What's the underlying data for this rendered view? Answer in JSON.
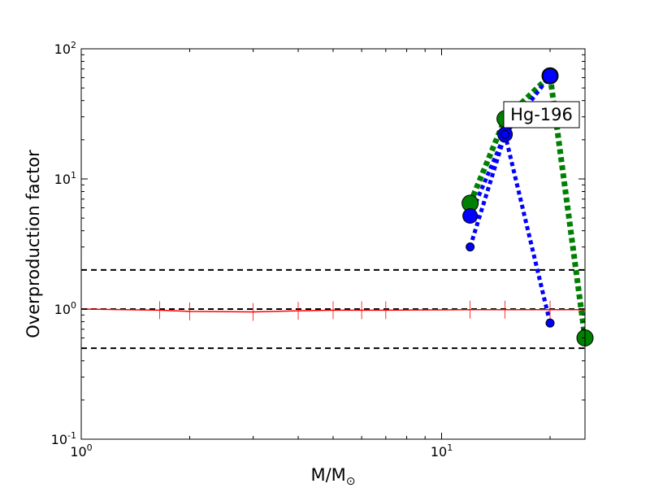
{
  "chart_data": {
    "type": "line",
    "title": "",
    "xlabel": "M/M",
    "xlabel_subscript": "⊙",
    "ylabel": "Overproduction factor",
    "xscale": "log",
    "yscale": "log",
    "xlim": [
      1,
      25
    ],
    "ylim": [
      0.1,
      100
    ],
    "x_ticks": [
      {
        "base": "10",
        "exp": "0",
        "value": 1
      },
      {
        "base": "10",
        "exp": "1",
        "value": 10
      }
    ],
    "y_ticks": [
      {
        "base": "10",
        "exp": "-1",
        "value": 0.1
      },
      {
        "base": "10",
        "exp": "0",
        "value": 1
      },
      {
        "base": "10",
        "exp": "1",
        "value": 10
      },
      {
        "base": "10",
        "exp": "2",
        "value": 100
      }
    ],
    "annotation": "Hg-196",
    "reference_lines": [
      {
        "y": 2.0,
        "color": "#000000",
        "style": "dashed"
      },
      {
        "y": 1.0,
        "color": "#000000",
        "style": "dashed"
      },
      {
        "y": 0.5,
        "color": "#000000",
        "style": "dashed"
      }
    ],
    "series": [
      {
        "color": "#ff0000",
        "style": "solid",
        "marker": "tick",
        "x": [
          1,
          1.65,
          2,
          3,
          4,
          5,
          6,
          7,
          12,
          15,
          20,
          25
        ],
        "y": [
          1.0,
          0.98,
          0.96,
          0.95,
          0.97,
          0.98,
          0.98,
          0.98,
          0.99,
          0.99,
          0.99,
          0.99
        ]
      },
      {
        "color": "#008000",
        "style": "dotted-thick",
        "marker": "circle-large",
        "x": [
          12,
          15,
          20,
          25
        ],
        "y": [
          6.5,
          29,
          62,
          0.6
        ]
      },
      {
        "color": "#0000ff",
        "style": "dotted",
        "marker": "circle-mixed",
        "x": [
          12,
          15,
          20
        ],
        "y": [
          5.2,
          22,
          62
        ]
      },
      {
        "color": "#0000ff",
        "style": "dotted",
        "marker": "circle-small",
        "x": [
          12,
          15,
          20
        ],
        "y": [
          3.0,
          22,
          0.78
        ]
      }
    ]
  }
}
